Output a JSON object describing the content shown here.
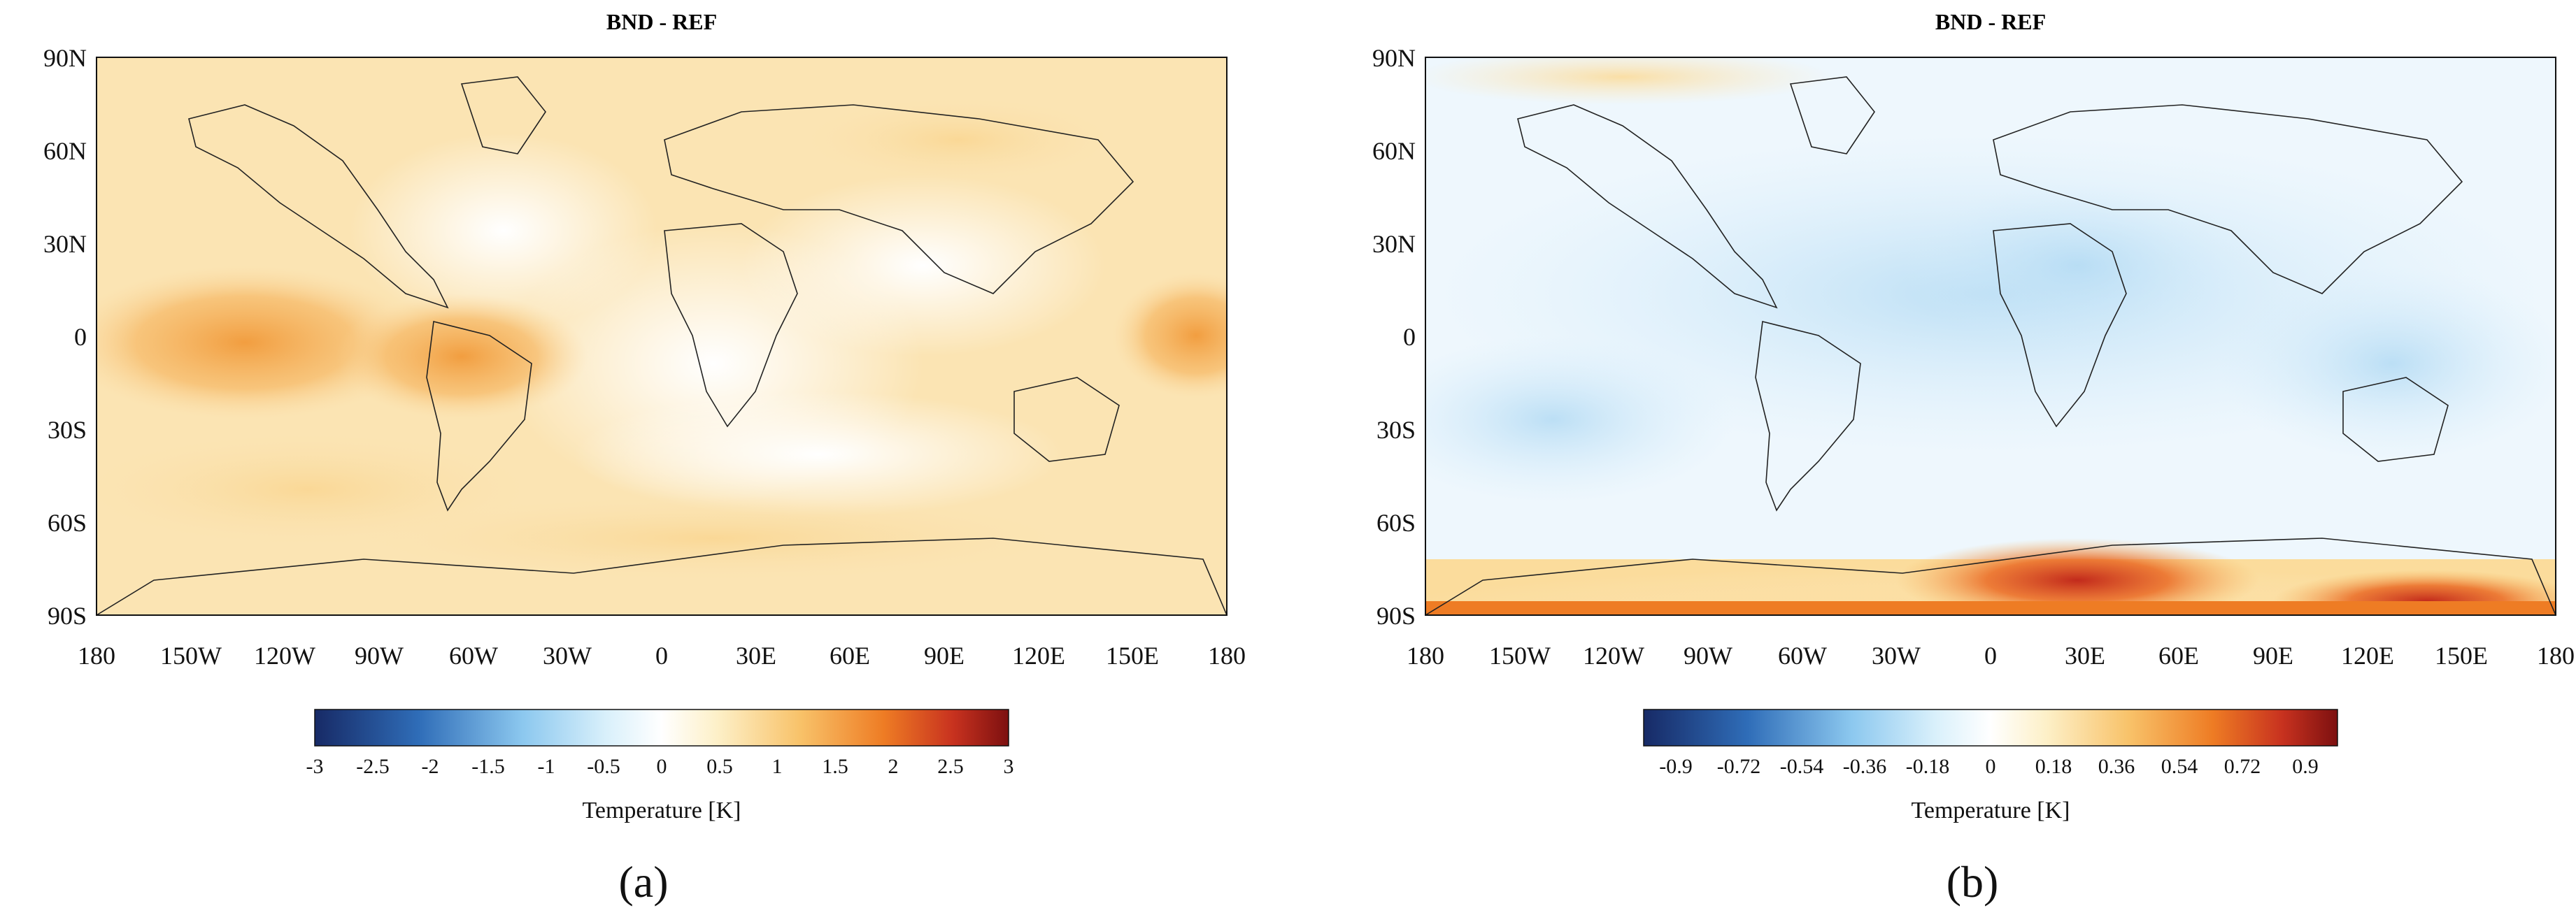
{
  "panels": [
    {
      "id": "a",
      "title": "BND - REF",
      "lat_ticks": [
        "90N",
        "60N",
        "30N",
        "0",
        "30S",
        "60S",
        "90S"
      ],
      "lon_ticks": [
        "180",
        "150W",
        "120W",
        "90W",
        "60W",
        "30W",
        "0",
        "30E",
        "60E",
        "90E",
        "120E",
        "150E",
        "180"
      ],
      "colorbar": {
        "label": "Temperature [K]",
        "min": -3,
        "max": 3,
        "ticks": [
          "-3",
          "-2.5",
          "-2",
          "-1.5",
          "-1",
          "-0.5",
          "0",
          "0.5",
          "1",
          "1.5",
          "2",
          "2.5",
          "3"
        ]
      },
      "field_description": "warming (positive anomaly) over most oceans, strongest in tropical Pacific (~1.5 K)",
      "sublabel": "(a)"
    },
    {
      "id": "b",
      "title": "BND - REF",
      "lat_ticks": [
        "90N",
        "60N",
        "30N",
        "0",
        "30S",
        "60S",
        "90S"
      ],
      "lon_ticks": [
        "180",
        "150W",
        "120W",
        "90W",
        "60W",
        "30W",
        "0",
        "30E",
        "60E",
        "90E",
        "120E",
        "150E",
        "180"
      ],
      "colorbar": {
        "label": "Temperature [K]",
        "min": -1.0,
        "max": 1.0,
        "ticks": [
          "-0.9",
          "-0.72",
          "-0.54",
          "-0.36",
          "-0.18",
          "0",
          "0.18",
          "0.36",
          "0.54",
          "0.72",
          "0.9"
        ]
      },
      "field_description": "slight cooling over tropics/subtropics, strong warming over Antarctica (~0.9 K)",
      "sublabel": "(b)"
    }
  ],
  "colors": {
    "cold_dark": "#1a2a6c",
    "cold_mid": "#3b8ed8",
    "cold_light": "#bfe4f8",
    "neutral": "#ffffff",
    "warm_light": "#fde7b0",
    "warm_mid": "#f3a23a",
    "warm_dark": "#8b1a1a"
  }
}
